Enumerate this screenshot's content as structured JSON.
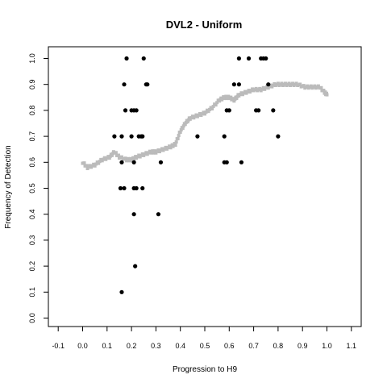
{
  "chart_data": {
    "type": "scatter",
    "title": "DVL2 - Uniform",
    "xlabel": "Progression to H9",
    "ylabel": "Frequency of Detection",
    "xlim": [
      -0.1,
      1.1
    ],
    "ylim": [
      0.0,
      1.0
    ],
    "x_ticks": [
      "-0.1",
      "0.0",
      "0.1",
      "0.2",
      "0.3",
      "0.4",
      "0.5",
      "0.6",
      "0.7",
      "0.8",
      "0.9",
      "1.0",
      "1.1"
    ],
    "y_ticks": [
      "0.0",
      "0.1",
      "0.2",
      "0.3",
      "0.4",
      "0.5",
      "0.6",
      "0.7",
      "0.8",
      "0.9",
      "1.0"
    ],
    "grid": false,
    "colors": {
      "points": "#000000",
      "smooth": "#bbbbbb",
      "frame": "#000000"
    },
    "series": [
      {
        "style": "black points",
        "points": [
          [
            0.18,
            1.0
          ],
          [
            0.25,
            1.0
          ],
          [
            0.64,
            1.0
          ],
          [
            0.68,
            1.0
          ],
          [
            0.73,
            1.0
          ],
          [
            0.74,
            1.0
          ],
          [
            0.75,
            1.0
          ],
          [
            0.17,
            0.9
          ],
          [
            0.26,
            0.9
          ],
          [
            0.265,
            0.9
          ],
          [
            0.62,
            0.9
          ],
          [
            0.64,
            0.9
          ],
          [
            0.76,
            0.9
          ],
          [
            0.175,
            0.8
          ],
          [
            0.2,
            0.8
          ],
          [
            0.21,
            0.8
          ],
          [
            0.22,
            0.8
          ],
          [
            0.59,
            0.8
          ],
          [
            0.6,
            0.8
          ],
          [
            0.71,
            0.8
          ],
          [
            0.72,
            0.8
          ],
          [
            0.78,
            0.8
          ],
          [
            0.13,
            0.7
          ],
          [
            0.16,
            0.7
          ],
          [
            0.2,
            0.7
          ],
          [
            0.23,
            0.7
          ],
          [
            0.24,
            0.7
          ],
          [
            0.245,
            0.7
          ],
          [
            0.47,
            0.7
          ],
          [
            0.58,
            0.7
          ],
          [
            0.8,
            0.7
          ],
          [
            0.16,
            0.6
          ],
          [
            0.21,
            0.6
          ],
          [
            0.32,
            0.6
          ],
          [
            0.58,
            0.6
          ],
          [
            0.59,
            0.6
          ],
          [
            0.65,
            0.6
          ],
          [
            0.155,
            0.5
          ],
          [
            0.17,
            0.5
          ],
          [
            0.21,
            0.5
          ],
          [
            0.22,
            0.5
          ],
          [
            0.245,
            0.5
          ],
          [
            0.21,
            0.4
          ],
          [
            0.31,
            0.4
          ],
          [
            0.215,
            0.2
          ],
          [
            0.16,
            0.1
          ]
        ]
      },
      {
        "style": "grey smoothed curve",
        "points": [
          [
            0.0,
            0.6
          ],
          [
            0.02,
            0.58
          ],
          [
            0.05,
            0.59
          ],
          [
            0.08,
            0.61
          ],
          [
            0.11,
            0.62
          ],
          [
            0.13,
            0.64
          ],
          [
            0.15,
            0.62
          ],
          [
            0.18,
            0.61
          ],
          [
            0.2,
            0.61
          ],
          [
            0.22,
            0.62
          ],
          [
            0.25,
            0.63
          ],
          [
            0.28,
            0.64
          ],
          [
            0.3,
            0.64
          ],
          [
            0.33,
            0.65
          ],
          [
            0.36,
            0.66
          ],
          [
            0.38,
            0.67
          ],
          [
            0.4,
            0.72
          ],
          [
            0.42,
            0.75
          ],
          [
            0.44,
            0.77
          ],
          [
            0.47,
            0.78
          ],
          [
            0.5,
            0.79
          ],
          [
            0.53,
            0.81
          ],
          [
            0.56,
            0.84
          ],
          [
            0.58,
            0.85
          ],
          [
            0.6,
            0.85
          ],
          [
            0.62,
            0.84
          ],
          [
            0.64,
            0.86
          ],
          [
            0.67,
            0.87
          ],
          [
            0.7,
            0.88
          ],
          [
            0.73,
            0.88
          ],
          [
            0.76,
            0.89
          ],
          [
            0.79,
            0.9
          ],
          [
            0.82,
            0.9
          ],
          [
            0.85,
            0.9
          ],
          [
            0.88,
            0.9
          ],
          [
            0.91,
            0.89
          ],
          [
            0.94,
            0.89
          ],
          [
            0.97,
            0.89
          ],
          [
            0.99,
            0.87
          ],
          [
            1.0,
            0.86
          ]
        ]
      }
    ]
  }
}
